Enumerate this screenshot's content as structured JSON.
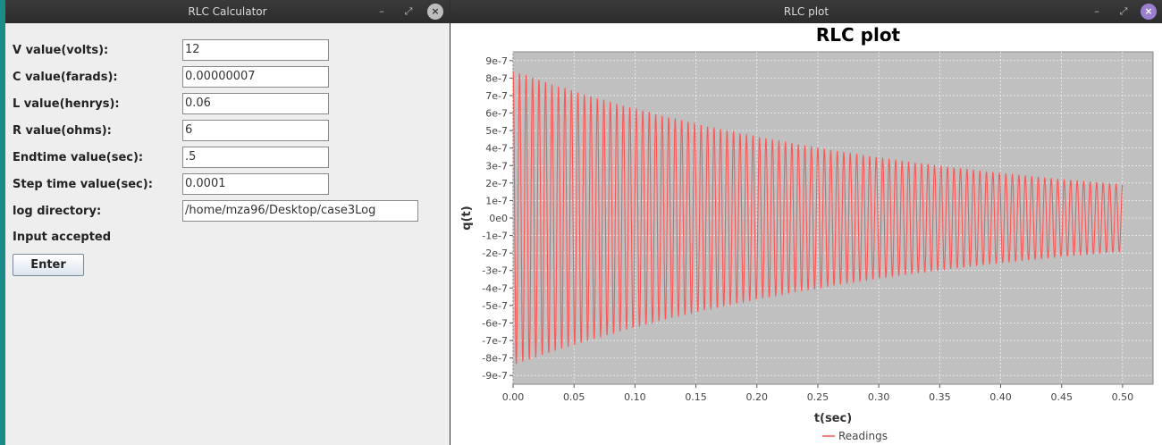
{
  "calculator": {
    "title": "RLC Calculator",
    "controls": {
      "minimize": "–",
      "maximize": "⤢",
      "close": "×"
    },
    "fields": [
      {
        "label": "V value(volts):",
        "value": "12"
      },
      {
        "label": "C value(farads):",
        "value": "0.00000007"
      },
      {
        "label": "L value(henrys):",
        "value": "0.06"
      },
      {
        "label": "R value(ohms):",
        "value": "6"
      },
      {
        "label": "Endtime value(sec):",
        "value": ".5"
      },
      {
        "label": "Step time value(sec):",
        "value": "0.0001"
      },
      {
        "label": "log directory:",
        "value": "/home/mza96/Desktop/case3Log"
      }
    ],
    "status": "Input accepted",
    "enter_label": "Enter"
  },
  "plot_window": {
    "title": "RLC plot",
    "controls": {
      "minimize": "–",
      "maximize": "⤢",
      "close": "×"
    }
  },
  "chart_data": {
    "type": "line",
    "title": "RLC plot",
    "xlabel": "t(sec)",
    "ylabel": "q(t)",
    "xlim": [
      0,
      0.525
    ],
    "ylim": [
      -9.5e-07,
      9.5e-07
    ],
    "x_ticks": [
      "0.00",
      "0.05",
      "0.10",
      "0.15",
      "0.20",
      "0.25",
      "0.30",
      "0.35",
      "0.40",
      "0.45",
      "0.50"
    ],
    "y_ticks": [
      "9e-7",
      "8e-7",
      "7e-7",
      "6e-7",
      "5e-7",
      "4e-7",
      "3e-7",
      "2e-7",
      "1e-7",
      "0e0",
      "-1e-7",
      "-2e-7",
      "-3e-7",
      "-4e-7",
      "-5e-7",
      "-6e-7",
      "-7e-7",
      "-8e-7",
      "-9e-7"
    ],
    "series": [
      {
        "name": "Readings",
        "color": "#ff5555",
        "amplitude_start": 8.4e-07,
        "amplitude_end": 1.9e-07,
        "t_end": 0.5,
        "cycles": 94
      }
    ],
    "legend": "bottom-center",
    "plot_background": "#c0c0c0",
    "grid": true
  }
}
